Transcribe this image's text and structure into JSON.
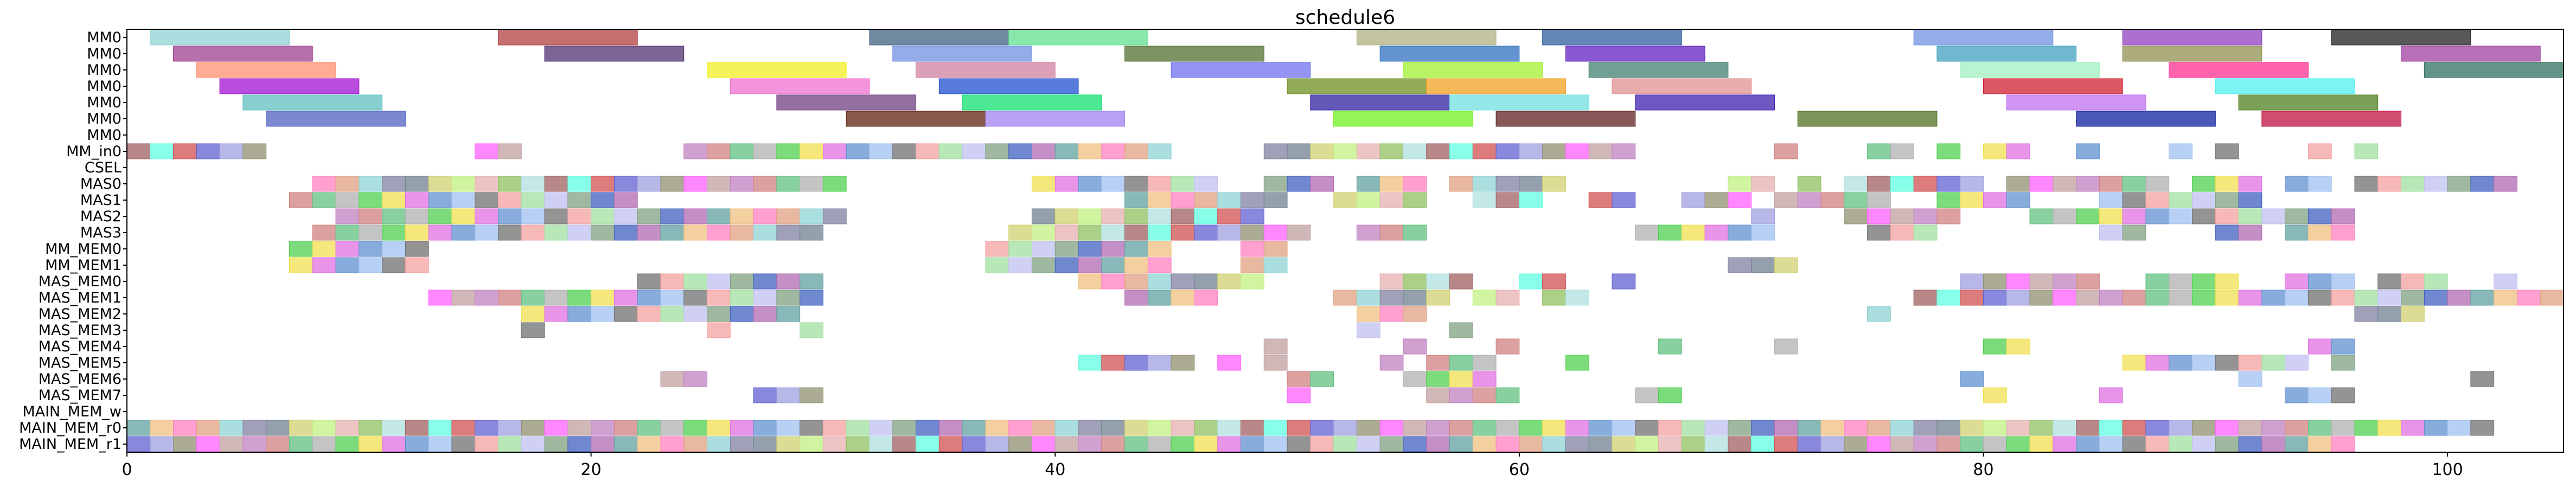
{
  "chart_data": {
    "type": "gantt",
    "title": "schedule6",
    "xlim": [
      0,
      105
    ],
    "x_ticks": [
      0,
      20,
      40,
      60,
      80,
      100
    ],
    "rows": [
      "MM0",
      "MM0",
      "MM0",
      "MM0",
      "MM0",
      "MM0",
      "MM0",
      "MM_in0",
      "CSEL",
      "MAS0",
      "MAS1",
      "MAS2",
      "MAS3",
      "MM_MEM0",
      "MM_MEM1",
      "MAS_MEM0",
      "MAS_MEM1",
      "MAS_MEM2",
      "MAS_MEM3",
      "MAS_MEM4",
      "MAS_MEM5",
      "MAS_MEM6",
      "MAS_MEM7",
      "MAIN_MEM_w",
      "MAIN_MEM_r0",
      "MAIN_MEM_r1"
    ],
    "palette": [
      "#e6b0b0",
      "#8fd3d3",
      "#b06ab0",
      "#f4a0a0",
      "#f0e050",
      "#c080c0",
      "#6060d0",
      "#90c060",
      "#8080a0",
      "#60a0a0",
      "#a0e0a0",
      "#e070e0",
      "#d08080",
      "#a0a0e0",
      "#b0e0e0",
      "#708090",
      "#f0c080",
      "#c0c0f0",
      "#6090d0",
      "#60c080",
      "#909070",
      "#a06060",
      "#d0d070",
      "#ff80c0",
      "#80a080",
      "#a0c0f0",
      "#b0b0b0",
      "#ff60ff",
      "#60ffe0",
      "#c0f080",
      "#e0a080",
      "#4060c0",
      "#707070",
      "#50d050",
      "#c0a0a0",
      "#d05050"
    ],
    "tasks": [
      {
        "row": 0,
        "start": 1,
        "end": 7,
        "color": "#8fd3d3"
      },
      {
        "row": 0,
        "start": 16,
        "end": 22,
        "color": "#b04040"
      },
      {
        "row": 0,
        "start": 32,
        "end": 38,
        "color": "#406080"
      },
      {
        "row": 0,
        "start": 38,
        "end": 44,
        "color": "#60e090"
      },
      {
        "row": 0,
        "start": 53,
        "end": 59,
        "color": "#b0b080"
      },
      {
        "row": 0,
        "start": 61,
        "end": 67,
        "color": "#3060a0"
      },
      {
        "row": 0,
        "start": 77,
        "end": 83,
        "color": "#7090e0"
      },
      {
        "row": 0,
        "start": 86,
        "end": 92,
        "color": "#9040c0"
      },
      {
        "row": 0,
        "start": 95,
        "end": 101,
        "color": "#202020"
      },
      {
        "row": 1,
        "start": 2,
        "end": 8,
        "color": "#a04090"
      },
      {
        "row": 1,
        "start": 18,
        "end": 24,
        "color": "#503070"
      },
      {
        "row": 1,
        "start": 33,
        "end": 39,
        "color": "#7090e0"
      },
      {
        "row": 1,
        "start": 43,
        "end": 49,
        "color": "#507030"
      },
      {
        "row": 1,
        "start": 54,
        "end": 60,
        "color": "#3070c0"
      },
      {
        "row": 1,
        "start": 62,
        "end": 68,
        "color": "#6020c0"
      },
      {
        "row": 1,
        "start": 78,
        "end": 84,
        "color": "#40a0c0"
      },
      {
        "row": 1,
        "start": 86,
        "end": 92,
        "color": "#909050"
      },
      {
        "row": 1,
        "start": 98,
        "end": 104,
        "color": "#a040a0"
      },
      {
        "row": 2,
        "start": 3,
        "end": 9,
        "color": "#ff9070"
      },
      {
        "row": 2,
        "start": 25,
        "end": 31,
        "color": "#f0f020"
      },
      {
        "row": 2,
        "start": 34,
        "end": 40,
        "color": "#d080a0"
      },
      {
        "row": 2,
        "start": 45,
        "end": 51,
        "color": "#7070f0"
      },
      {
        "row": 2,
        "start": 55,
        "end": 61,
        "color": "#a0f030"
      },
      {
        "row": 2,
        "start": 63,
        "end": 69,
        "color": "#408070"
      },
      {
        "row": 2,
        "start": 79,
        "end": 85,
        "color": "#a0f0c0"
      },
      {
        "row": 2,
        "start": 88,
        "end": 94,
        "color": "#ff3090"
      },
      {
        "row": 2,
        "start": 99,
        "end": 105,
        "color": "#307060"
      },
      {
        "row": 3,
        "start": 4,
        "end": 10,
        "color": "#a010d0"
      },
      {
        "row": 3,
        "start": 26,
        "end": 32,
        "color": "#f070d0"
      },
      {
        "row": 3,
        "start": 35,
        "end": 41,
        "color": "#2050d0"
      },
      {
        "row": 3,
        "start": 50,
        "end": 56,
        "color": "#709020"
      },
      {
        "row": 3,
        "start": 56,
        "end": 62,
        "color": "#f0a020"
      },
      {
        "row": 3,
        "start": 64,
        "end": 70,
        "color": "#e09090"
      },
      {
        "row": 3,
        "start": 80,
        "end": 86,
        "color": "#d02030"
      },
      {
        "row": 3,
        "start": 90,
        "end": 96,
        "color": "#50f0f0"
      },
      {
        "row": 4,
        "start": 5,
        "end": 11,
        "color": "#60c0c0"
      },
      {
        "row": 4,
        "start": 28,
        "end": 34,
        "color": "#704080"
      },
      {
        "row": 4,
        "start": 36,
        "end": 42,
        "color": "#10e070"
      },
      {
        "row": 4,
        "start": 51,
        "end": 57,
        "color": "#3020a0"
      },
      {
        "row": 4,
        "start": 57,
        "end": 63,
        "color": "#70e0e0"
      },
      {
        "row": 4,
        "start": 65,
        "end": 71,
        "color": "#4020b0"
      },
      {
        "row": 4,
        "start": 81,
        "end": 87,
        "color": "#c070f0"
      },
      {
        "row": 4,
        "start": 91,
        "end": 97,
        "color": "#508020"
      },
      {
        "row": 5,
        "start": 6,
        "end": 12,
        "color": "#5060c0"
      },
      {
        "row": 5,
        "start": 31,
        "end": 37,
        "color": "#602010"
      },
      {
        "row": 5,
        "start": 37,
        "end": 43,
        "color": "#a080f0"
      },
      {
        "row": 5,
        "start": 52,
        "end": 58,
        "color": "#70f020"
      },
      {
        "row": 5,
        "start": 59,
        "end": 65,
        "color": "#602020"
      },
      {
        "row": 5,
        "start": 72,
        "end": 78,
        "color": "#507020"
      },
      {
        "row": 5,
        "start": 84,
        "end": 90,
        "color": "#1020a0"
      },
      {
        "row": 5,
        "start": 92,
        "end": 98,
        "color": "#c01040"
      }
    ],
    "dense_rows": {
      "7": {
        "start": 0,
        "end": 65,
        "gaps": [
          [
            6,
            15
          ],
          [
            17,
            24
          ],
          [
            45,
            49
          ],
          [
            66,
            71
          ]
        ],
        "extra": [
          [
            71,
            72
          ],
          [
            75,
            77
          ],
          [
            78,
            79
          ],
          [
            80,
            82
          ],
          [
            84,
            85
          ],
          [
            88,
            89
          ],
          [
            90,
            91
          ],
          [
            94,
            95
          ],
          [
            96,
            97
          ]
        ]
      },
      "9": {
        "start": 8,
        "end": 31,
        "gaps": [
          [
            31,
            39
          ]
        ],
        "extra": [
          [
            39,
            47
          ],
          [
            49,
            52
          ],
          [
            53,
            56
          ],
          [
            57,
            62
          ],
          [
            69,
            71
          ],
          [
            72,
            73
          ],
          [
            74,
            80
          ],
          [
            81,
            88
          ],
          [
            89,
            92
          ],
          [
            93,
            95
          ],
          [
            96,
            103
          ]
        ]
      },
      "10": {
        "start": 7,
        "end": 22,
        "gaps": [],
        "extra": [
          [
            43,
            50
          ],
          [
            52,
            56
          ],
          [
            58,
            61
          ],
          [
            63,
            65
          ],
          [
            67,
            70
          ],
          [
            71,
            76
          ],
          [
            78,
            82
          ],
          [
            85,
            92
          ]
        ]
      },
      "11": {
        "start": 9,
        "end": 31,
        "gaps": [],
        "extra": [
          [
            39,
            49
          ],
          [
            70,
            71
          ],
          [
            74,
            79
          ],
          [
            82,
            96
          ]
        ]
      },
      "12": {
        "start": 8,
        "end": 30,
        "gaps": [],
        "extra": [
          [
            38,
            51
          ],
          [
            53,
            56
          ],
          [
            65,
            71
          ],
          [
            75,
            78
          ],
          [
            85,
            87
          ],
          [
            90,
            92
          ],
          [
            93,
            96
          ]
        ]
      },
      "13": {
        "start": 7,
        "end": 13,
        "gaps": [],
        "extra": [
          [
            37,
            45
          ],
          [
            48,
            50
          ]
        ]
      },
      "14": {
        "start": 7,
        "end": 13,
        "gaps": [],
        "extra": [
          [
            37,
            45
          ],
          [
            48,
            50
          ],
          [
            69,
            72
          ]
        ]
      },
      "15": {
        "start": 22,
        "end": 30,
        "gaps": [],
        "extra": [
          [
            41,
            49
          ],
          [
            54,
            58
          ],
          [
            60,
            62
          ],
          [
            64,
            65
          ],
          [
            79,
            85
          ],
          [
            87,
            91
          ],
          [
            93,
            96
          ],
          [
            97,
            100
          ],
          [
            102,
            103
          ]
        ]
      },
      "16": {
        "start": 13,
        "end": 30,
        "gaps": [],
        "extra": [
          [
            43,
            47
          ],
          [
            52,
            57
          ],
          [
            58,
            60
          ],
          [
            61,
            63
          ],
          [
            77,
            105
          ]
        ]
      },
      "17": {
        "start": 17,
        "end": 29,
        "gaps": [],
        "extra": [
          [
            53,
            56
          ],
          [
            75,
            76
          ],
          [
            96,
            99
          ]
        ]
      },
      "18": {
        "start": 17,
        "end": 18,
        "gaps": [],
        "extra": [
          [
            25,
            26
          ],
          [
            29,
            30
          ],
          [
            53,
            54
          ],
          [
            57,
            58
          ]
        ]
      },
      "19": {
        "start": 49,
        "end": 50,
        "gaps": [],
        "extra": [
          [
            55,
            56
          ],
          [
            59,
            60
          ],
          [
            66,
            67
          ],
          [
            71,
            72
          ],
          [
            80,
            82
          ],
          [
            94,
            96
          ]
        ]
      },
      "20": {
        "start": 41,
        "end": 46,
        "gaps": [],
        "extra": [
          [
            47,
            48
          ],
          [
            49,
            50
          ],
          [
            54,
            55
          ],
          [
            56,
            59
          ],
          [
            62,
            63
          ],
          [
            86,
            94
          ],
          [
            95,
            96
          ]
        ]
      },
      "21": {
        "start": 23,
        "end": 25,
        "gaps": [],
        "extra": [
          [
            50,
            52
          ],
          [
            55,
            59
          ],
          [
            79,
            80
          ],
          [
            91,
            92
          ],
          [
            101,
            102
          ]
        ]
      },
      "22": {
        "start": 27,
        "end": 30,
        "gaps": [],
        "extra": [
          [
            50,
            51
          ],
          [
            56,
            60
          ],
          [
            65,
            67
          ],
          [
            80,
            81
          ],
          [
            85,
            86
          ],
          [
            93,
            96
          ]
        ]
      },
      "24": {
        "start": 0,
        "end": 102,
        "gaps": [],
        "extra": []
      },
      "25": {
        "start": 0,
        "end": 96,
        "gaps": [],
        "extra": []
      }
    }
  }
}
